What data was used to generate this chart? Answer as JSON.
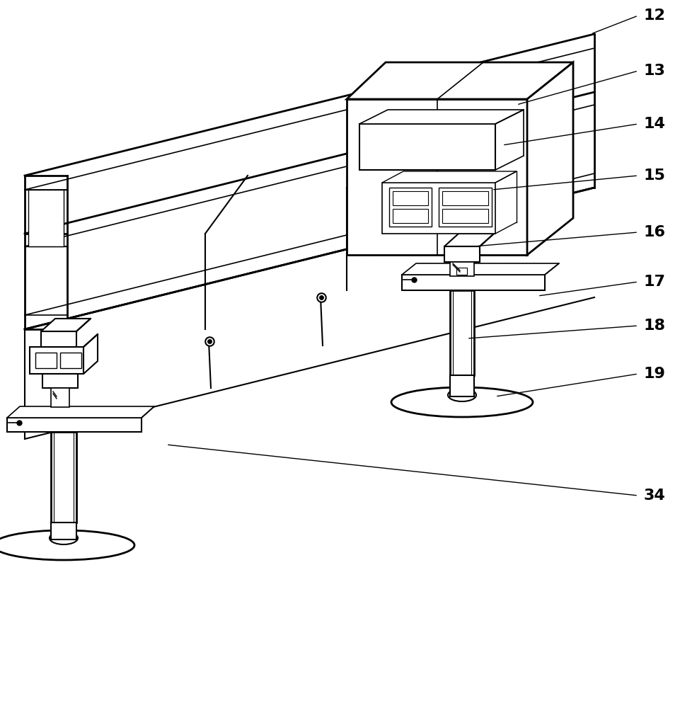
{
  "background_color": "#ffffff",
  "line_color": "#000000",
  "fig_width": 9.61,
  "fig_height": 10.0,
  "dpi": 100,
  "label_fontsize": 16,
  "label_configs": [
    [
      "12",
      910,
      22,
      835,
      48
    ],
    [
      "13",
      910,
      100,
      730,
      148
    ],
    [
      "14",
      910,
      175,
      710,
      205
    ],
    [
      "15",
      910,
      248,
      695,
      268
    ],
    [
      "16",
      910,
      328,
      670,
      348
    ],
    [
      "17",
      910,
      398,
      760,
      418
    ],
    [
      "18",
      910,
      460,
      660,
      478
    ],
    [
      "19",
      910,
      528,
      700,
      560
    ],
    [
      "34",
      910,
      700,
      235,
      628
    ]
  ]
}
